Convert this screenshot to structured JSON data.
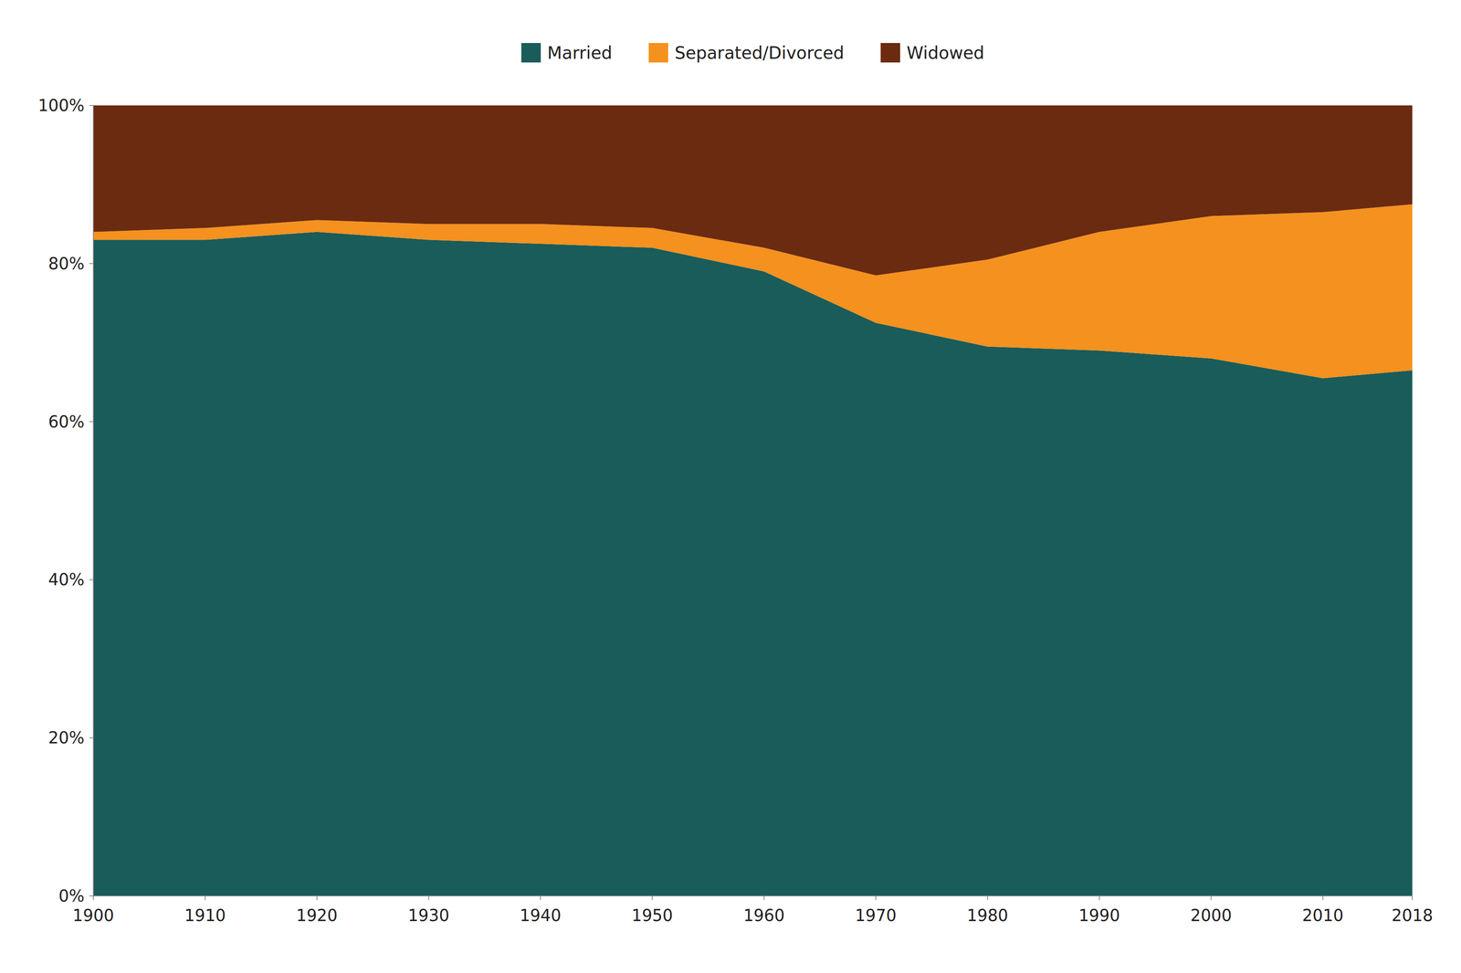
{
  "chart_data": {
    "type": "area",
    "stacked": true,
    "x": [
      1900,
      1910,
      1920,
      1930,
      1940,
      1950,
      1960,
      1970,
      1980,
      1990,
      2000,
      2010,
      2018
    ],
    "series": [
      {
        "name": "Married",
        "color": "#1a5c5a",
        "values": [
          83.0,
          83.0,
          84.0,
          83.0,
          82.5,
          82.0,
          79.0,
          72.5,
          69.5,
          69.0,
          68.0,
          65.5,
          66.5
        ]
      },
      {
        "name": "Separated/Divorced",
        "color": "#f5911e",
        "values": [
          1.0,
          1.5,
          1.5,
          2.0,
          2.5,
          2.5,
          3.0,
          6.0,
          11.0,
          15.0,
          18.0,
          21.0,
          21.0
        ]
      },
      {
        "name": "Widowed",
        "color": "#6b2b10",
        "values": [
          16.0,
          15.5,
          14.5,
          15.0,
          15.0,
          15.5,
          18.0,
          21.5,
          19.5,
          16.0,
          14.0,
          13.5,
          12.5
        ]
      }
    ],
    "xlim": [
      1900,
      2018
    ],
    "xticks": [
      1900,
      1910,
      1920,
      1930,
      1940,
      1950,
      1960,
      1970,
      1980,
      1990,
      2000,
      2010,
      2018
    ],
    "ylim": [
      0,
      100
    ],
    "yticks": [
      {
        "value": 0,
        "label": "0%"
      },
      {
        "value": 20,
        "label": "20%"
      },
      {
        "value": 40,
        "label": "40%"
      },
      {
        "value": 60,
        "label": "60%"
      },
      {
        "value": 80,
        "label": "80%"
      },
      {
        "value": 100,
        "label": "100%"
      }
    ],
    "grid": true,
    "legend": "top"
  }
}
